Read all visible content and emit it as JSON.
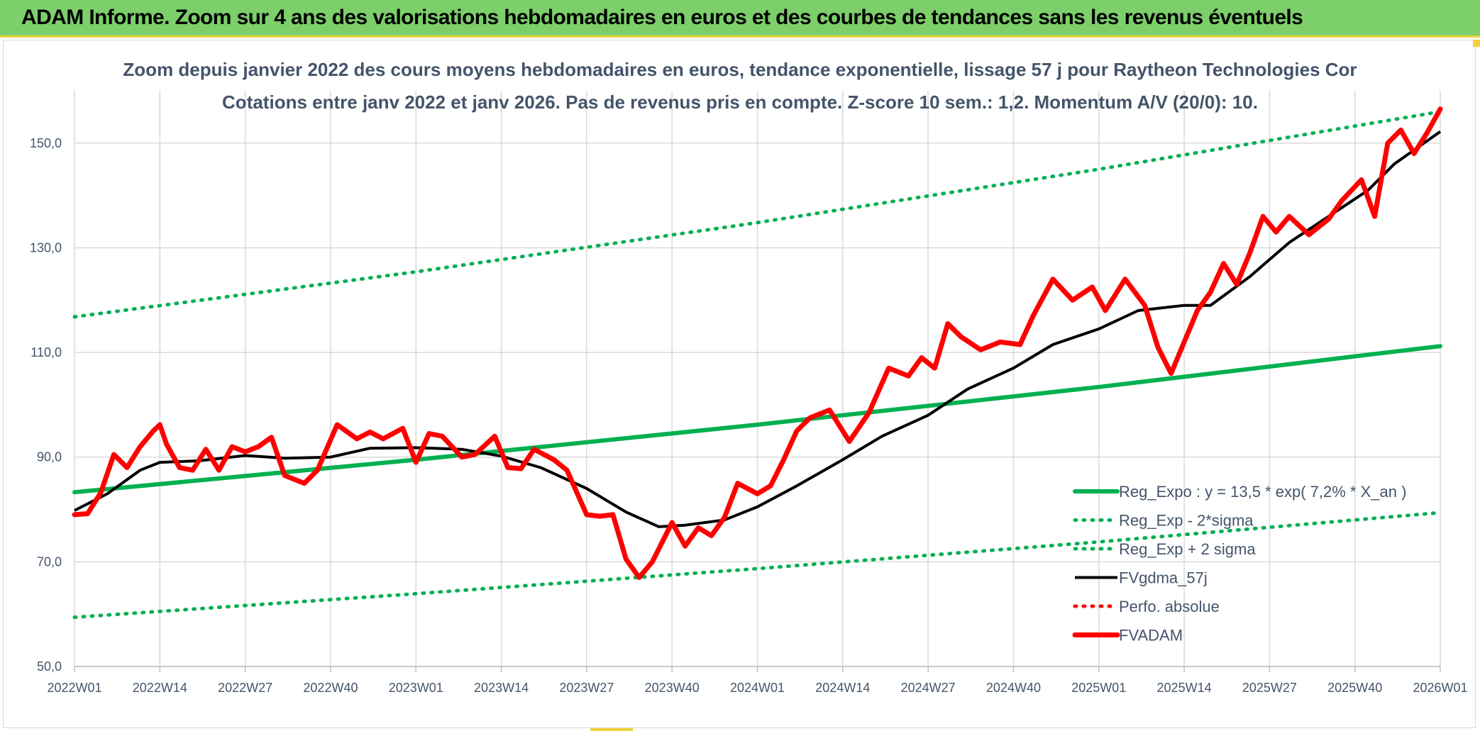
{
  "banner": {
    "title": "ADAM Informe. Zoom sur 4 ans des valorisations hebdomadaires en euros et des courbes de tendances sans les revenus éventuels"
  },
  "colors": {
    "banner_bg": "#7ccf6a",
    "accent_yellow": "#f2d23a",
    "reg_expo": "#00b050",
    "reg_dotted": "#00b050",
    "fvgdma": "#000000",
    "perfo_absolue": "#ff0000",
    "fvadam": "#ff0000",
    "text": "#44546a",
    "grid": "#d9d9d9"
  },
  "chart_data": {
    "type": "line",
    "title": "Zoom depuis janvier 2022 des cours moyens hebdomadaires en euros, tendance exponentielle, lissage 57 j pour Raytheon Technologies Cor",
    "subtitle": "Cotations entre janv 2022 et janv 2026. Pas de revenus pris en compte. Z-score 10 sem.: 1,2. Momentum A/V (20/0): 10.",
    "x_tick_labels": [
      "2022W01",
      "2022W14",
      "2022W27",
      "2022W40",
      "2023W01",
      "2023W14",
      "2023W27",
      "2023W40",
      "2024W01",
      "2024W14",
      "2024W27",
      "2024W40",
      "2025W01",
      "2025W14",
      "2025W27",
      "2025W40",
      "2026W01"
    ],
    "y_tick_labels": [
      "50,0",
      "70,0",
      "90,0",
      "110,0",
      "130,0",
      "150,0"
    ],
    "ylim": [
      50,
      160
    ],
    "y_ticks": [
      50,
      70,
      90,
      110,
      130,
      150
    ],
    "grid": true,
    "legend_position": "bottom-right",
    "series": [
      {
        "name": "Reg_Expo : y = 13,5 * exp( 7,2% *  X_an )",
        "style": "solid-thick",
        "color_key": "reg_expo",
        "x": [
          "2022W01",
          "2023W01",
          "2024W01",
          "2025W01",
          "2026W01"
        ],
        "values": [
          83.3,
          89.5,
          96.2,
          103.4,
          111.2
        ]
      },
      {
        "name": "Reg_Exp - 2*sigma",
        "style": "dotted",
        "color_key": "reg_dotted",
        "x": [
          "2022W01",
          "2023W01",
          "2024W01",
          "2025W01",
          "2026W01"
        ],
        "values": [
          59.4,
          63.9,
          68.7,
          73.8,
          79.4
        ]
      },
      {
        "name": "Reg_Exp + 2 sigma",
        "style": "dotted",
        "color_key": "reg_dotted",
        "x": [
          "2022W01",
          "2023W01",
          "2024W01",
          "2025W01",
          "2026W01"
        ],
        "values": [
          116.8,
          125.4,
          134.8,
          145.0,
          156.0
        ]
      },
      {
        "name": "FVgdma_57j",
        "style": "solid",
        "color_key": "fvgdma",
        "x": [
          "2022W01",
          "2022W06",
          "2022W11",
          "2022W14",
          "2022W20",
          "2022W27",
          "2022W33",
          "2022W40",
          "2022W46",
          "2023W01",
          "2023W08",
          "2023W14",
          "2023W20",
          "2023W27",
          "2023W33",
          "2023W38",
          "2023W42",
          "2023W48",
          "2024W01",
          "2024W07",
          "2024W14",
          "2024W20",
          "2024W27",
          "2024W33",
          "2024W40",
          "2024W46",
          "2025W01",
          "2025W07",
          "2025W14",
          "2025W18",
          "2025W24",
          "2025W30",
          "2025W36",
          "2025W42",
          "2025W46",
          "2026W01"
        ],
        "values": [
          79.8,
          83.0,
          87.5,
          89.0,
          89.3,
          90.3,
          89.8,
          90.0,
          91.7,
          91.8,
          91.5,
          90.2,
          88.0,
          84.0,
          79.5,
          76.7,
          77.0,
          78.0,
          80.5,
          84.5,
          89.5,
          94.0,
          98.0,
          103.0,
          107.0,
          111.5,
          114.5,
          118.0,
          119.0,
          119.0,
          124.5,
          131.0,
          136.0,
          141.0,
          146.0,
          152.2
        ]
      },
      {
        "name": "Perfo. absolue",
        "style": "dotted",
        "color_key": "perfo_absolue",
        "x": [],
        "values": []
      },
      {
        "name": "FVADAM",
        "style": "solid-thick",
        "color_key": "fvadam",
        "x": [
          "2022W01",
          "2022W03",
          "2022W05",
          "2022W07",
          "2022W09",
          "2022W11",
          "2022W13",
          "2022W14",
          "2022W15",
          "2022W17",
          "2022W19",
          "2022W21",
          "2022W23",
          "2022W25",
          "2022W27",
          "2022W29",
          "2022W31",
          "2022W33",
          "2022W36",
          "2022W38",
          "2022W41",
          "2022W44",
          "2022W46",
          "2022W48",
          "2022W51",
          "2023W01",
          "2023W03",
          "2023W05",
          "2023W08",
          "2023W10",
          "2023W13",
          "2023W15",
          "2023W17",
          "2023W19",
          "2023W22",
          "2023W24",
          "2023W27",
          "2023W29",
          "2023W31",
          "2023W33",
          "2023W35",
          "2023W37",
          "2023W40",
          "2023W42",
          "2023W44",
          "2023W46",
          "2023W48",
          "2023W50",
          "2024W01",
          "2024W03",
          "2024W05",
          "2024W07",
          "2024W09",
          "2024W12",
          "2024W15",
          "2024W18",
          "2024W21",
          "2024W24",
          "2024W26",
          "2024W28",
          "2024W30",
          "2024W32",
          "2024W35",
          "2024W38",
          "2024W41",
          "2024W43",
          "2024W46",
          "2024W49",
          "2024W52",
          "2025W02",
          "2025W05",
          "2025W08",
          "2025W10",
          "2025W12",
          "2025W14",
          "2025W16",
          "2025W18",
          "2025W20",
          "2025W22",
          "2025W24",
          "2025W26",
          "2025W28",
          "2025W30",
          "2025W33",
          "2025W36",
          "2025W38",
          "2025W41",
          "2025W43",
          "2025W45",
          "2025W47",
          "2025W49",
          "2025W51",
          "2026W01"
        ],
        "values": [
          79.0,
          79.2,
          83.2,
          90.5,
          88.0,
          92.0,
          95.0,
          96.2,
          92.5,
          88.0,
          87.5,
          91.5,
          87.5,
          92.0,
          91.0,
          92.0,
          93.8,
          86.5,
          85.0,
          87.5,
          96.2,
          93.5,
          94.8,
          93.5,
          95.5,
          89.0,
          94.5,
          94.0,
          90.0,
          90.5,
          94.0,
          88.0,
          87.8,
          91.5,
          89.5,
          87.5,
          79.0,
          78.7,
          79.0,
          70.5,
          67.0,
          70.0,
          77.5,
          73.0,
          76.5,
          75.0,
          78.5,
          85.0,
          83.0,
          84.5,
          89.5,
          95.0,
          97.5,
          99.0,
          93.0,
          98.5,
          107.0,
          105.5,
          109.0,
          107.0,
          115.5,
          113.0,
          110.5,
          112.0,
          111.5,
          117.0,
          124.0,
          120.0,
          122.5,
          118.0,
          124.0,
          119.0,
          111.0,
          106.0,
          112.0,
          118.0,
          121.5,
          127.0,
          123.0,
          129.0,
          136.0,
          133.0,
          136.0,
          132.5,
          135.5,
          139.0,
          143.0,
          136.0,
          150.0,
          152.5,
          148.0,
          152.0,
          156.5
        ]
      }
    ]
  }
}
